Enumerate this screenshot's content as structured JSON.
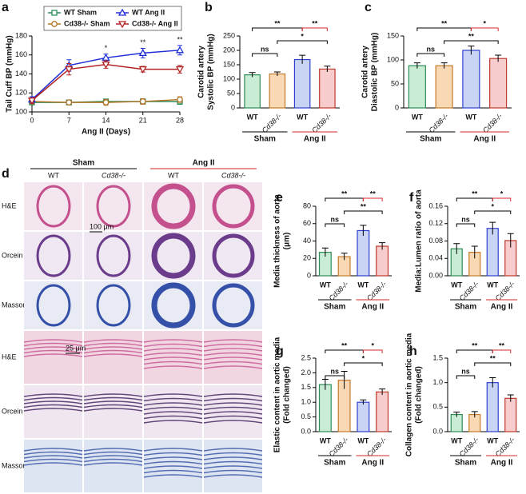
{
  "chart_data": [
    {
      "type": "line",
      "panel": "a",
      "xlabel": "Ang II (Days)",
      "ylabel": "Tail Cuff BP (mmHg)",
      "x": [
        0,
        7,
        14,
        21,
        28
      ],
      "xlim": [
        0,
        28
      ],
      "xticks": [
        0,
        7,
        14,
        21,
        28
      ],
      "ylim": [
        100,
        180
      ],
      "yticks": [
        100,
        120,
        140,
        160,
        180
      ],
      "series": [
        {
          "name": "WT Sham",
          "color": "#2e8b57",
          "marker": "square",
          "values": [
            110,
            110,
            111,
            111,
            111
          ],
          "errors": [
            2,
            2,
            2,
            2,
            3
          ]
        },
        {
          "name": "Cd38-/- Sham",
          "color": "#b5762a",
          "marker": "circle",
          "values": [
            111,
            110,
            110,
            111,
            113
          ],
          "errors": [
            2,
            2,
            3,
            3,
            3
          ]
        },
        {
          "name": "WT Ang II",
          "color": "#1f2fd6",
          "marker": "triangle",
          "values": [
            113,
            149,
            157,
            162,
            165
          ],
          "errors": [
            3,
            6,
            4,
            5,
            5
          ]
        },
        {
          "name": "Cd38-/- Ang II",
          "color": "#b22222",
          "marker": "triangle-down",
          "values": [
            112,
            145,
            150,
            145,
            145
          ],
          "errors": [
            3,
            6,
            4,
            3,
            4
          ]
        }
      ],
      "annotations": [
        {
          "x": 14,
          "text": "*"
        },
        {
          "x": 21,
          "text": "**"
        },
        {
          "x": 28,
          "text": "**"
        }
      ]
    },
    {
      "type": "bar",
      "panel": "b",
      "ylabel": [
        "Carotid artery",
        "Systolic BP (mmHg)"
      ],
      "categories": [
        "WT",
        "Cd38-/-",
        "WT",
        "Cd38-/-"
      ],
      "groups": [
        "Sham",
        "Ang II"
      ],
      "group_colors": [
        "#000000",
        "#d62728"
      ],
      "values": [
        115,
        118,
        168,
        135
      ],
      "errors": [
        8,
        7,
        15,
        10
      ],
      "colors": [
        "#c8ecd4",
        "#f9d9b4",
        "#c9d4f5",
        "#f6cccc"
      ],
      "edgecolors": [
        "#2e8b57",
        "#c47a2a",
        "#2f3fd0",
        "#c0392b"
      ],
      "ylim": [
        0,
        250
      ],
      "yticks": [
        0,
        50,
        100,
        150,
        200,
        250
      ],
      "comparisons": [
        {
          "pair": [
            0,
            2
          ],
          "label": "**",
          "color": "#000000"
        },
        {
          "pair": [
            0,
            1
          ],
          "label": "ns",
          "color": "#000000"
        },
        {
          "pair": [
            1,
            3
          ],
          "label": "*",
          "color": "#000000"
        },
        {
          "pair": [
            2,
            3
          ],
          "label": "**",
          "color": "#d62728"
        }
      ]
    },
    {
      "type": "bar",
      "panel": "c",
      "ylabel": [
        "Carotid artery",
        "Diastolic BP (mmHg)"
      ],
      "categories": [
        "WT",
        "Cd38-/-",
        "WT",
        "Cd38-/-"
      ],
      "groups": [
        "Sham",
        "Ang II"
      ],
      "group_colors": [
        "#000000",
        "#d62728"
      ],
      "values": [
        88,
        88,
        120,
        103
      ],
      "errors": [
        6,
        6,
        9,
        7
      ],
      "colors": [
        "#c8ecd4",
        "#f9d9b4",
        "#c9d4f5",
        "#f6cccc"
      ],
      "edgecolors": [
        "#2e8b57",
        "#c47a2a",
        "#2f3fd0",
        "#c0392b"
      ],
      "ylim": [
        0,
        150
      ],
      "yticks": [
        0,
        50,
        100,
        150
      ],
      "comparisons": [
        {
          "pair": [
            0,
            2
          ],
          "label": "**",
          "color": "#000000"
        },
        {
          "pair": [
            0,
            1
          ],
          "label": "ns",
          "color": "#000000"
        },
        {
          "pair": [
            1,
            3
          ],
          "label": "**",
          "color": "#000000"
        },
        {
          "pair": [
            2,
            3
          ],
          "label": "*",
          "color": "#d62728"
        }
      ]
    },
    {
      "type": "bar",
      "panel": "e",
      "ylabel": [
        "Media thickness of aorta",
        "(μm)"
      ],
      "categories": [
        "WT",
        "Cd38-/-",
        "WT",
        "Cd38-/-"
      ],
      "groups": [
        "Sham",
        "Ang II"
      ],
      "group_colors": [
        "#000000",
        "#d62728"
      ],
      "values": [
        27,
        22,
        52,
        34
      ],
      "errors": [
        5,
        4,
        6,
        4
      ],
      "colors": [
        "#c8ecd4",
        "#f9d9b4",
        "#c9d4f5",
        "#f6cccc"
      ],
      "edgecolors": [
        "#2e8b57",
        "#c47a2a",
        "#2f3fd0",
        "#c0392b"
      ],
      "ylim": [
        0,
        80
      ],
      "yticks": [
        0,
        20,
        40,
        60,
        80
      ],
      "comparisons": [
        {
          "pair": [
            0,
            2
          ],
          "label": "**",
          "color": "#000000"
        },
        {
          "pair": [
            0,
            1
          ],
          "label": "ns",
          "color": "#000000"
        },
        {
          "pair": [
            1,
            3
          ],
          "label": "**",
          "color": "#000000"
        },
        {
          "pair": [
            2,
            3
          ],
          "label": "**",
          "color": "#d62728"
        }
      ]
    },
    {
      "type": "bar",
      "panel": "f",
      "ylabel": [
        "Media:Lumen ratio of aorta"
      ],
      "categories": [
        "WT",
        "Cd38-/-",
        "WT",
        "Cd38-/-"
      ],
      "groups": [
        "Sham",
        "Ang II"
      ],
      "group_colors": [
        "#000000",
        "#d62728"
      ],
      "values": [
        0.062,
        0.054,
        0.109,
        0.081
      ],
      "errors": [
        0.012,
        0.014,
        0.014,
        0.016
      ],
      "colors": [
        "#c8ecd4",
        "#f9d9b4",
        "#c9d4f5",
        "#f6cccc"
      ],
      "edgecolors": [
        "#2e8b57",
        "#c47a2a",
        "#2f3fd0",
        "#c0392b"
      ],
      "ylim": [
        0,
        0.16
      ],
      "yticks": [
        {
          "value": 0,
          "label": "0.00"
        },
        0.04,
        0.08,
        0.12,
        0.16
      ],
      "comparisons": [
        {
          "pair": [
            0,
            2
          ],
          "label": "**",
          "color": "#000000"
        },
        {
          "pair": [
            0,
            1
          ],
          "label": "ns",
          "color": "#000000"
        },
        {
          "pair": [
            1,
            3
          ],
          "label": "*",
          "color": "#000000"
        },
        {
          "pair": [
            2,
            3
          ],
          "label": "*",
          "color": "#d62728"
        }
      ]
    },
    {
      "type": "bar",
      "panel": "g",
      "ylabel": [
        "Elastic content in aortic media",
        "(Fold changed)"
      ],
      "categories": [
        "WT",
        "Cd38-/-",
        "WT",
        "Cd38-/-"
      ],
      "groups": [
        "Sham",
        "Ang II"
      ],
      "group_colors": [
        "#000000",
        "#d62728"
      ],
      "values": [
        1.6,
        1.75,
        1.0,
        1.35
      ],
      "errors": [
        0.18,
        0.3,
        0.08,
        0.1
      ],
      "colors": [
        "#c8ecd4",
        "#f9d9b4",
        "#c9d4f5",
        "#f6cccc"
      ],
      "edgecolors": [
        "#2e8b57",
        "#c47a2a",
        "#2f3fd0",
        "#c0392b"
      ],
      "ylim": [
        0,
        2.5
      ],
      "yticks": [
        {
          "value": 0,
          "label": "0.0"
        },
        0.5,
        {
          "value": 1,
          "label": "1.0"
        },
        1.5,
        {
          "value": 2,
          "label": "2.0"
        },
        2.5
      ],
      "comparisons": [
        {
          "pair": [
            0,
            2
          ],
          "label": "**",
          "color": "#000000"
        },
        {
          "pair": [
            0,
            1
          ],
          "label": "ns",
          "color": "#000000"
        },
        {
          "pair": [
            1,
            3
          ],
          "label": "*",
          "color": "#000000"
        },
        {
          "pair": [
            2,
            3
          ],
          "label": "*",
          "color": "#d62728"
        }
      ]
    },
    {
      "type": "bar",
      "panel": "h",
      "ylabel": [
        "Collagen content in aortic media",
        "(Fold changed)"
      ],
      "categories": [
        "WT",
        "Cd38-/-",
        "WT",
        "Cd38-/-"
      ],
      "groups": [
        "Sham",
        "Ang II"
      ],
      "group_colors": [
        "#000000",
        "#d62728"
      ],
      "values": [
        0.35,
        0.35,
        1.0,
        0.68
      ],
      "errors": [
        0.05,
        0.06,
        0.1,
        0.07
      ],
      "colors": [
        "#c8ecd4",
        "#f9d9b4",
        "#c9d4f5",
        "#f6cccc"
      ],
      "edgecolors": [
        "#2e8b57",
        "#c47a2a",
        "#2f3fd0",
        "#c0392b"
      ],
      "ylim": [
        0,
        1.5
      ],
      "yticks": [
        {
          "value": 0,
          "label": "0.0"
        },
        0.5,
        {
          "value": 1,
          "label": "1.0"
        },
        1.5
      ],
      "comparisons": [
        {
          "pair": [
            0,
            2
          ],
          "label": "**",
          "color": "#000000"
        },
        {
          "pair": [
            0,
            1
          ],
          "label": "ns",
          "color": "#000000"
        },
        {
          "pair": [
            1,
            3
          ],
          "label": "**",
          "color": "#000000"
        },
        {
          "pair": [
            2,
            3
          ],
          "label": "**",
          "color": "#d62728"
        }
      ]
    }
  ],
  "panel_d": {
    "panel": "d",
    "groups": [
      {
        "name": "Sham",
        "color": "#000000"
      },
      {
        "name": "Ang II",
        "color": "#d62728"
      }
    ],
    "columns": [
      "WT",
      "Cd38-/-",
      "WT",
      "Cd38-/-"
    ],
    "rows": [
      "H&E",
      "Orcein",
      "Masson"
    ],
    "rows_magnified": [
      "H&E",
      "Orcein",
      "Masson"
    ],
    "scale_bars": [
      "100 μm",
      "25 μm"
    ]
  }
}
